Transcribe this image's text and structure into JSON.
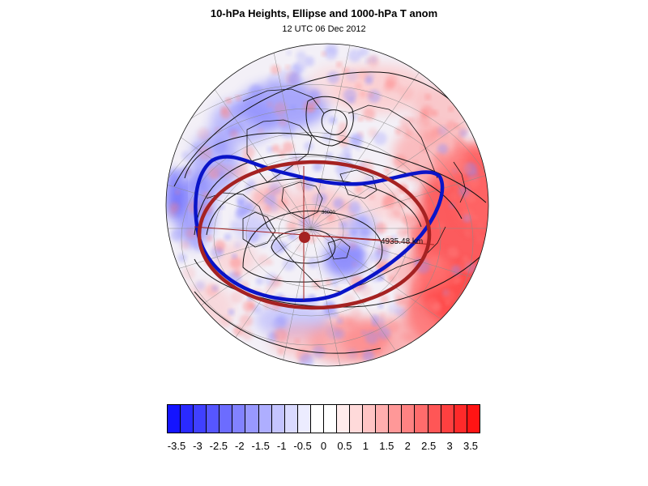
{
  "title": "10-hPa Heights, Ellipse and 1000-hPa T anom",
  "subtitle": "12 UTC 06 Dec 2012",
  "map": {
    "projection": "orthographic-polar",
    "distance_label": "4935.48 km",
    "contour_label": "30000",
    "colors": {
      "ellipse": "#a52222",
      "vortex_edge": "#0a14c8",
      "contours": "#111111",
      "coast": "#111111",
      "ocean_base": "#f3f0f7"
    }
  },
  "colorbar": {
    "labels": [
      "-3.5",
      "-3",
      "-2.5",
      "-2",
      "-1.5",
      "-1",
      "-0.5",
      "0",
      "0.5",
      "1",
      "1.5",
      "2",
      "2.5",
      "3",
      "3.5"
    ],
    "colors": [
      "#1414ff",
      "#2a2aff",
      "#4040ff",
      "#5656ff",
      "#6c6cff",
      "#8282ff",
      "#9898ff",
      "#aeaeff",
      "#c4c4ff",
      "#dadaff",
      "#ececff",
      "#ffffff",
      "#ffffff",
      "#ffecec",
      "#ffdada",
      "#ffc4c4",
      "#ffaeae",
      "#ff9898",
      "#ff8282",
      "#ff6c6c",
      "#ff5656",
      "#ff4040",
      "#ff2a2a",
      "#ff1414"
    ]
  }
}
